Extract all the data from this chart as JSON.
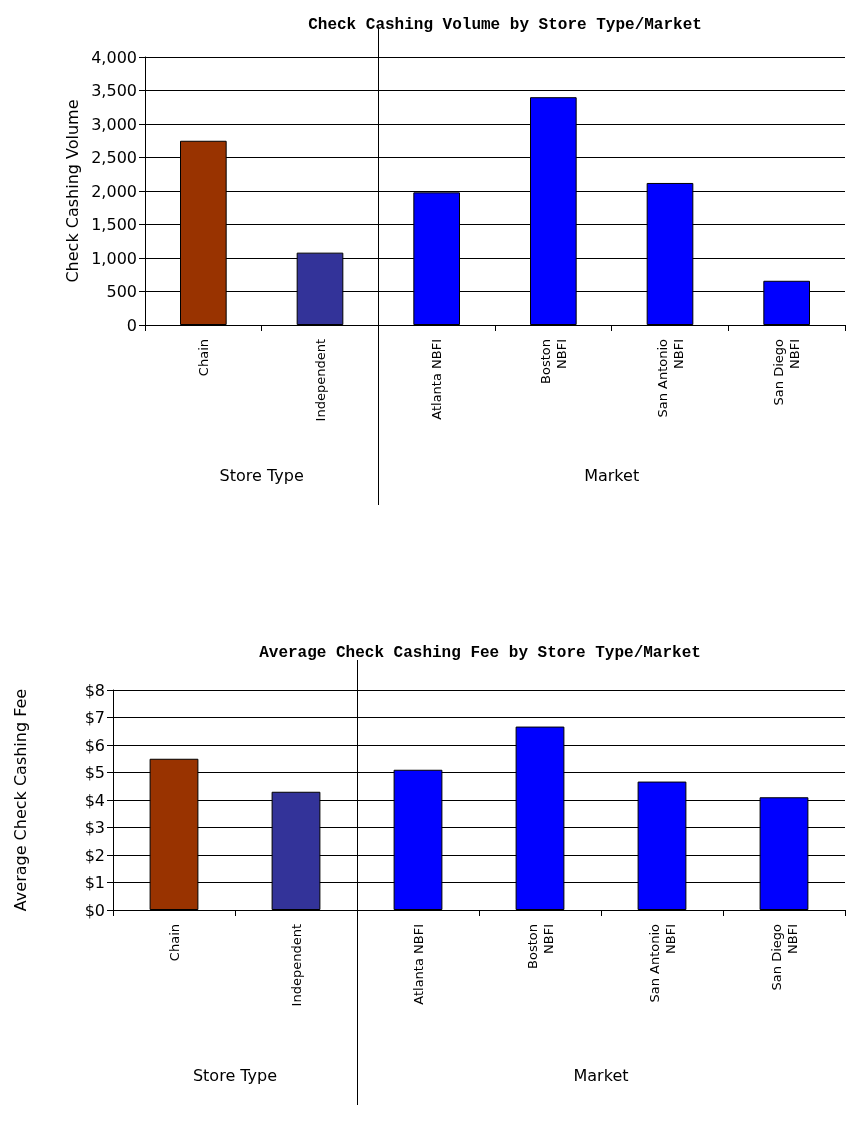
{
  "chart_data": [
    {
      "type": "bar",
      "title": "Check Cashing Volume by Store Type/Market",
      "ylabel": "Check Cashing Volume",
      "categories": [
        "Chain",
        "Independent",
        "Atlanta NBFI",
        "Boston\nNBFI",
        "San Antonio\nNBFI",
        "San Diego\nNBFI"
      ],
      "values": [
        2750,
        1080,
        1980,
        3400,
        2120,
        660
      ],
      "colors": [
        "#993300",
        "#333399",
        "#0000ff",
        "#0000ff",
        "#0000ff",
        "#0000ff"
      ],
      "ylim": [
        0,
        4000
      ],
      "yticks": [
        0,
        500,
        {
          "value": 1000,
          "label": "1,000"
        },
        {
          "value": 1500,
          "label": "1,500"
        },
        {
          "value": 2000,
          "label": "2,000"
        },
        {
          "value": 2500,
          "label": "2,500"
        },
        {
          "value": 3000,
          "label": "3,000"
        },
        {
          "value": 3500,
          "label": "3,500"
        },
        {
          "value": 4000,
          "label": "4,000"
        }
      ],
      "grid": "y",
      "annotations": [
        "Store Type",
        "Market"
      ]
    },
    {
      "type": "bar",
      "title": "Average Check Cashing Fee by Store Type/Market",
      "ylabel": "Average Check Cashing Fee",
      "categories": [
        "Chain",
        "Independent",
        "Atlanta NBFI",
        "Boston\nNBFI",
        "San Antonio\nNBFI",
        "San Diego\nNBFI"
      ],
      "values": [
        5.5,
        4.3,
        5.1,
        6.67,
        4.67,
        4.1
      ],
      "colors": [
        "#993300",
        "#333399",
        "#0000ff",
        "#0000ff",
        "#0000ff",
        "#0000ff"
      ],
      "ylim": [
        0,
        8
      ],
      "yticks": [
        {
          "value": 0,
          "label": "$0"
        },
        {
          "value": 1,
          "label": "$1"
        },
        {
          "value": 2,
          "label": "$2"
        },
        {
          "value": 3,
          "label": "$3"
        },
        {
          "value": 4,
          "label": "$4"
        },
        {
          "value": 5,
          "label": "$5"
        },
        {
          "value": 6,
          "label": "$6"
        },
        {
          "value": 7,
          "label": "$7"
        },
        {
          "value": 8,
          "label": "$8"
        }
      ],
      "grid": "y",
      "annotations": [
        "Store Type",
        "Market"
      ]
    }
  ]
}
